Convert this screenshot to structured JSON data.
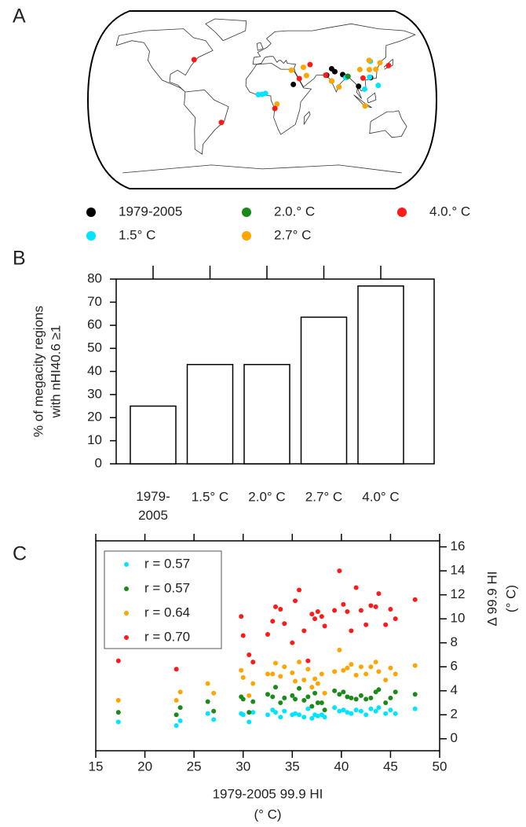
{
  "chart_data": [
    {
      "type": "map",
      "label": "A",
      "series": [
        {
          "name": "1979-2005",
          "color": "#000000",
          "lon": [
            32.5,
            68,
            74,
            77,
            85,
            88,
            90,
            100.5,
            114
          ],
          "lat": [
            15.6,
            25,
            31.5,
            28.6,
            25.6,
            22.6,
            23.7,
            13.7,
            22.5
          ]
        },
        {
          "name": "1.5° C",
          "color": "#00e5ff",
          "lon": [
            3.4,
            -4,
            -0.2,
            80,
            88,
            106.6,
            113,
            121,
            117
          ],
          "lat": [
            6.5,
            5.3,
            5.6,
            13,
            22.6,
            10.8,
            23,
            14.6,
            39
          ]
        },
        {
          "name": "2.0.° C",
          "color": "#1a8a1a",
          "lon": [
            72.8,
            90.4
          ],
          "lat": [
            19,
            23.8
          ]
        },
        {
          "name": "2.7° C",
          "color": "#ffa500",
          "lon": [
            31,
            44,
            46.7,
            72.8,
            80,
            15.3,
            106.8,
            116,
            121,
            127,
            114,
            104
          ],
          "lat": [
            30,
            33,
            24.6,
            19,
            13,
            -4.3,
            -6.2,
            40,
            31,
            37.5,
            30.6,
            30.7
          ]
        },
        {
          "name": "4.0.° C",
          "color": "#ff1a1a",
          "lon": [
            -74,
            -43,
            51.4,
            13.2,
            39,
            67,
            106,
            135.5
          ],
          "lat": [
            40.7,
            -22.9,
            35.7,
            -8.8,
            21.5,
            25,
            22,
            34.7
          ]
        }
      ]
    },
    {
      "type": "bar",
      "label": "B",
      "categories": [
        "1979-\n2005",
        "1.5° C",
        "2.0° C",
        "2.7° C",
        "4.0° C"
      ],
      "values": [
        25,
        43,
        43,
        63.5,
        77
      ],
      "color": "#ffffff",
      "edgecolor": "#000000",
      "ylim": [
        0,
        80
      ],
      "yticks": [
        0,
        10,
        20,
        30,
        40,
        50,
        60,
        70,
        80
      ],
      "ylabel": [
        "% of megacity regions",
        "with nHI40.6 ≥1"
      ]
    },
    {
      "type": "scatter",
      "label": "C",
      "x": [
        17.3,
        23.2,
        23.6,
        26.4,
        27.0,
        29.8,
        30.0,
        30.6,
        31.0,
        32.5,
        33.0,
        33.3,
        33.8,
        34.2,
        35.0,
        35.3,
        35.7,
        36.2,
        36.6,
        37.0,
        37.3,
        37.6,
        38.0,
        38.3,
        39.3,
        39.8,
        40.2,
        40.6,
        41.0,
        41.5,
        42.0,
        42.5,
        43.0,
        43.5,
        43.8,
        44.5,
        45.0,
        45.5,
        47.5
      ],
      "series": [
        {
          "name": "r = 0.57",
          "color": "#00e5ff",
          "values": [
            1.4,
            1.1,
            1.5,
            2.1,
            1.6,
            2.1,
            2.0,
            1.4,
            2.2,
            2.0,
            2.4,
            2.2,
            1.8,
            2.3,
            2.0,
            2.1,
            2.0,
            1.8,
            2.5,
            1.7,
            2.0,
            1.9,
            2.0,
            1.8,
            2.6,
            2.3,
            2.4,
            2.2,
            2.1,
            2.4,
            2.3,
            2.0,
            2.5,
            2.3,
            2.6,
            2.1,
            2.4,
            2.1,
            2.5
          ]
        },
        {
          "name": "r = 0.57",
          "color": "#1a8a1a",
          "values": [
            2.2,
            2.0,
            2.6,
            3.1,
            2.3,
            3.5,
            3.3,
            2.2,
            3.1,
            3.7,
            3.5,
            4.3,
            3.0,
            3.4,
            3.6,
            3.3,
            4.2,
            3.2,
            3.5,
            2.7,
            3.8,
            3.0,
            3.0,
            2.4,
            4.0,
            3.7,
            3.9,
            3.5,
            3.4,
            3.3,
            3.6,
            3.3,
            3.4,
            3.9,
            4.1,
            3.0,
            3.4,
            3.9,
            3.7
          ]
        },
        {
          "name": "r = 0.64",
          "color": "#ffa500",
          "values": [
            3.2,
            3.2,
            3.9,
            4.6,
            3.8,
            5.7,
            5.1,
            3.6,
            4.6,
            5.4,
            5.4,
            6.3,
            5.2,
            6.0,
            5.5,
            4.8,
            6.4,
            4.9,
            5.8,
            4.3,
            5.0,
            4.6,
            5.4,
            3.8,
            5.6,
            7.4,
            5.7,
            5.9,
            6.2,
            5.3,
            6.0,
            5.4,
            6.0,
            6.4,
            5.6,
            4.9,
            5.9,
            5.4,
            6.1
          ]
        },
        {
          "name": "r = 0.70",
          "color": "#ff1a1a",
          "values": [
            6.5,
            5.8,
            null,
            null,
            null,
            10.2,
            8.6,
            7.0,
            6.4,
            8.7,
            9.8,
            11.0,
            10.8,
            9.6,
            8.0,
            11.5,
            12.4,
            9.0,
            6.5,
            10.4,
            10.0,
            10.6,
            10.2,
            9.4,
            10.7,
            14.0,
            11.2,
            10.6,
            9.0,
            12.6,
            10.7,
            9.5,
            11.1,
            11.0,
            12.1,
            9.5,
            10.8,
            10.0,
            11.6
          ]
        }
      ],
      "xlim": [
        15,
        50
      ],
      "xticks": [
        15,
        20,
        25,
        30,
        35,
        40,
        45,
        50
      ],
      "ylim": [
        -1,
        16.5
      ],
      "yticks": [
        0,
        2,
        4,
        6,
        8,
        10,
        12,
        14,
        16
      ],
      "y_axis_side": "right",
      "xlabel": [
        "1979-2005 99.9 HI",
        "(° C)"
      ],
      "ylabel": [
        "Δ 99.9 HI",
        "(° C)"
      ],
      "legend": "upper left"
    }
  ]
}
